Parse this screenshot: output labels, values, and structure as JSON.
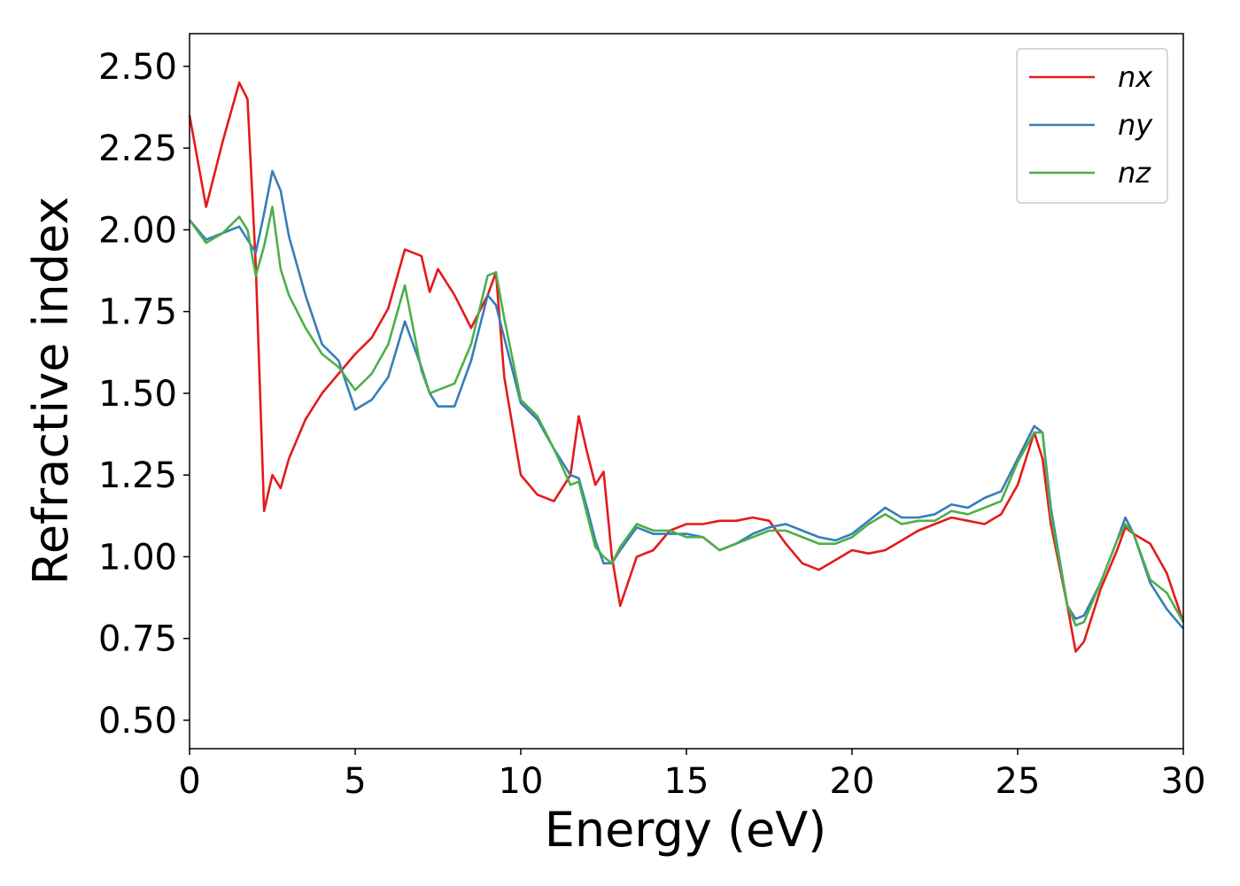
{
  "chart_data": {
    "type": "line",
    "x_label": "Energy (eV)",
    "y_label": "Refractive index",
    "x": [
      0,
      0.5,
      1,
      1.5,
      1.75,
      2,
      2.25,
      2.5,
      2.75,
      3,
      3.5,
      4,
      4.5,
      5,
      5.5,
      6,
      6.5,
      7,
      7.25,
      7.5,
      8,
      8.5,
      9,
      9.25,
      9.5,
      10,
      10.5,
      11,
      11.5,
      11.75,
      12,
      12.25,
      12.5,
      12.75,
      13,
      13.5,
      14,
      14.5,
      15,
      15.5,
      16,
      16.5,
      17,
      17.5,
      18,
      18.5,
      19,
      19.5,
      20,
      20.5,
      21,
      21.5,
      22,
      22.5,
      23,
      23.5,
      24,
      24.5,
      25,
      25.5,
      25.75,
      26,
      26.5,
      26.75,
      27,
      27.5,
      28,
      28.25,
      28.5,
      29,
      29.5,
      30
    ],
    "series": [
      {
        "name": "nx",
        "color": "#e41a1c",
        "values": [
          2.35,
          2.07,
          2.27,
          2.45,
          2.4,
          1.89,
          1.14,
          1.25,
          1.21,
          1.3,
          1.42,
          1.5,
          1.56,
          1.62,
          1.67,
          1.76,
          1.94,
          1.92,
          1.81,
          1.88,
          1.8,
          1.7,
          1.8,
          1.87,
          1.55,
          1.25,
          1.19,
          1.17,
          1.25,
          1.43,
          1.32,
          1.22,
          1.26,
          1.0,
          0.85,
          1.0,
          1.02,
          1.08,
          1.1,
          1.1,
          1.11,
          1.11,
          1.12,
          1.11,
          1.04,
          0.98,
          0.96,
          0.99,
          1.02,
          1.01,
          1.02,
          1.05,
          1.08,
          1.1,
          1.12,
          1.11,
          1.1,
          1.13,
          1.22,
          1.38,
          1.3,
          1.1,
          0.85,
          0.71,
          0.74,
          0.9,
          1.02,
          1.09,
          1.07,
          1.04,
          0.95,
          0.8
        ]
      },
      {
        "name": "ny",
        "color": "#377eb8",
        "values": [
          2.03,
          1.97,
          1.99,
          2.01,
          1.97,
          1.93,
          2.05,
          2.18,
          2.12,
          1.98,
          1.8,
          1.65,
          1.6,
          1.45,
          1.48,
          1.55,
          1.72,
          1.58,
          1.5,
          1.46,
          1.46,
          1.6,
          1.8,
          1.77,
          1.67,
          1.47,
          1.42,
          1.33,
          1.25,
          1.24,
          1.15,
          1.05,
          0.98,
          0.98,
          1.02,
          1.09,
          1.07,
          1.07,
          1.07,
          1.06,
          1.02,
          1.04,
          1.07,
          1.09,
          1.1,
          1.08,
          1.06,
          1.05,
          1.07,
          1.11,
          1.15,
          1.12,
          1.12,
          1.13,
          1.16,
          1.15,
          1.18,
          1.2,
          1.3,
          1.4,
          1.38,
          1.15,
          0.85,
          0.81,
          0.82,
          0.92,
          1.05,
          1.12,
          1.07,
          0.92,
          0.84,
          0.78
        ]
      },
      {
        "name": "nz",
        "color": "#4daf4a",
        "values": [
          2.03,
          1.96,
          1.99,
          2.04,
          2.0,
          1.86,
          1.95,
          2.07,
          1.88,
          1.8,
          1.7,
          1.62,
          1.58,
          1.51,
          1.56,
          1.65,
          1.83,
          1.57,
          1.5,
          1.51,
          1.53,
          1.65,
          1.86,
          1.87,
          1.73,
          1.48,
          1.43,
          1.33,
          1.22,
          1.23,
          1.13,
          1.03,
          1.0,
          0.98,
          1.03,
          1.1,
          1.08,
          1.08,
          1.06,
          1.06,
          1.02,
          1.04,
          1.06,
          1.08,
          1.08,
          1.06,
          1.04,
          1.04,
          1.06,
          1.1,
          1.13,
          1.1,
          1.11,
          1.11,
          1.14,
          1.13,
          1.15,
          1.17,
          1.29,
          1.38,
          1.38,
          1.13,
          0.85,
          0.79,
          0.8,
          0.92,
          1.05,
          1.1,
          1.07,
          0.93,
          0.89,
          0.8
        ]
      }
    ],
    "xlim": [
      0,
      30
    ],
    "xticks": [
      0,
      5,
      10,
      15,
      20,
      25,
      30
    ],
    "ylim": [
      0.413,
      2.6
    ],
    "yticks": [
      {
        "value": 0.5,
        "label": "0.50"
      },
      {
        "value": 0.75,
        "label": "0.75"
      },
      {
        "value": 1.0,
        "label": "1.00"
      },
      {
        "value": 1.25,
        "label": "1.25"
      },
      {
        "value": 1.5,
        "label": "1.50"
      },
      {
        "value": 1.75,
        "label": "1.75"
      },
      {
        "value": 2.0,
        "label": "2.00"
      },
      {
        "value": 2.25,
        "label": "2.25"
      },
      {
        "value": 2.5,
        "label": "2.50"
      }
    ],
    "grid": false,
    "legend": "upper right"
  }
}
